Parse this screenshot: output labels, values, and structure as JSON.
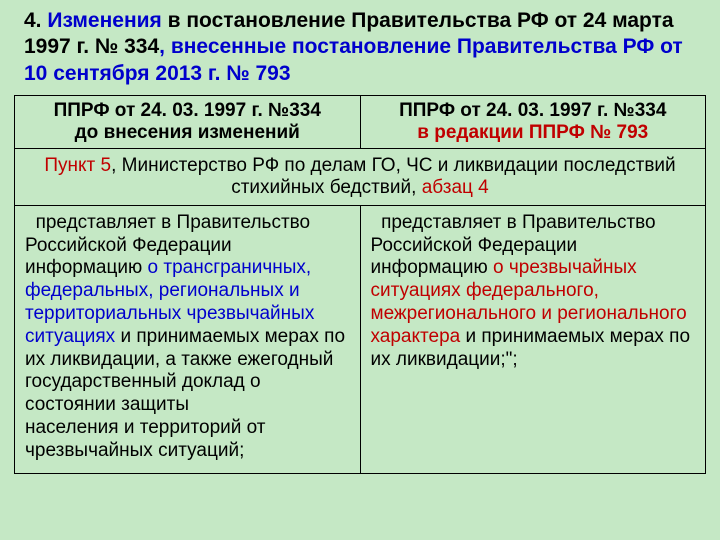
{
  "title": {
    "p1": "4. ",
    "p2": "Изменения",
    "p3": " в постановление Правительства РФ от 24 марта 1997 г. № 334",
    "p4": ", внесенные постановление Правительства РФ от 10 сентября 2013 г. № 793"
  },
  "header": {
    "left_top": "ППРФ от 24. 03. 1997 г. №334",
    "left_sub": "до внесения изменений",
    "right_top": "ППРФ от 24. 03. 1997 г. №334",
    "right_sub": "в редакции ППРФ № 793"
  },
  "section": {
    "p1": "Пункт 5",
    "p2": ", Министерство РФ по делам ГО, ЧС и ликвидации последствий стихийных бедствий, ",
    "p3": "абзац 4"
  },
  "left_cell": {
    "indent": "  ",
    "t1": "представляет в Правительство Российской Федерации информацию ",
    "t2": "о трансграничных, федеральных, региональных и территориальных чрезвычайных ситуациях",
    "t3": " и принимаемых мерах по их ликвидации, а также ежегодный государственный доклад о состоянии защиты",
    "t4": "населения и территорий от чрезвычайных ситуаций;"
  },
  "right_cell": {
    "indent": "  ",
    "t1": "представляет в Правительство Российской Федерации информацию ",
    "t2": "о чрезвычайных ситуациях федерального, межрегионального и регионального характера",
    "t3": " и принимаемых мерах по их ликвидации;\";"
  }
}
